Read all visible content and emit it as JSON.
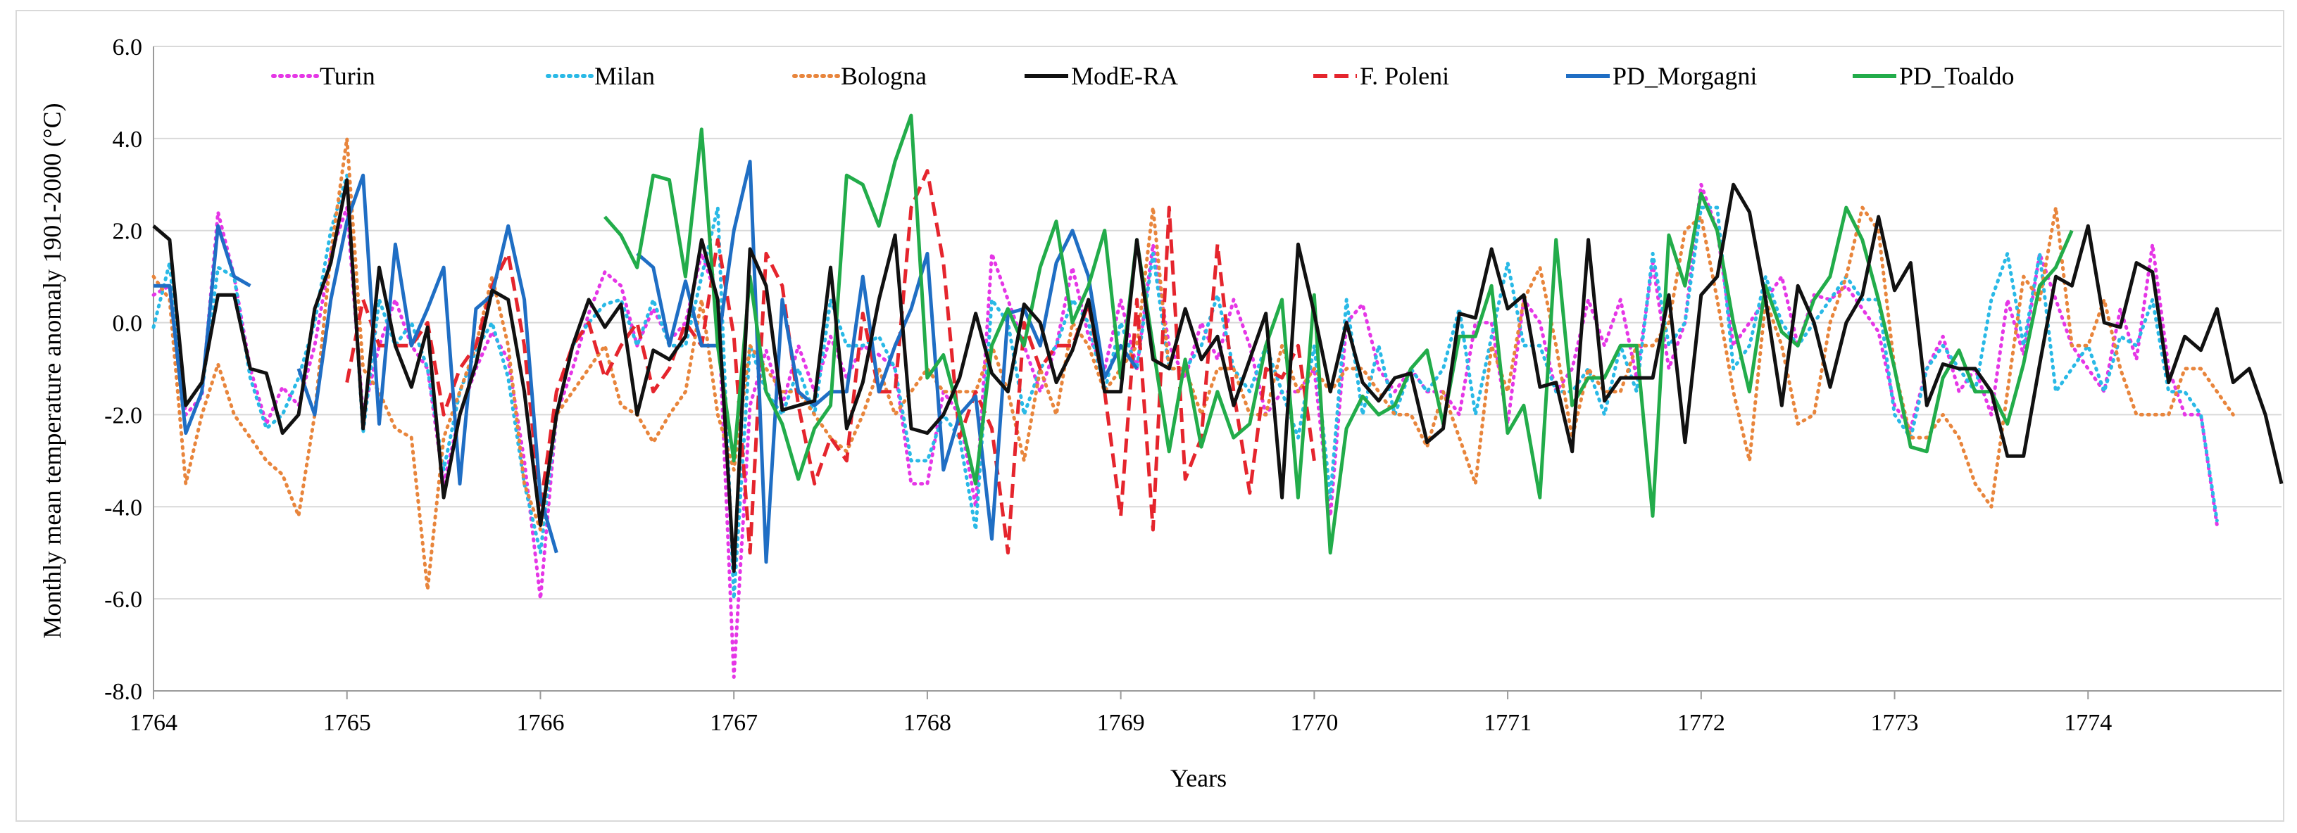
{
  "chart_data": {
    "type": "line",
    "title": "",
    "xlabel": "Years",
    "ylabel": "Monthly mean temperature anomaly 1901-2000 (°C)",
    "ylim": [
      -8.0,
      6.0
    ],
    "xlim": [
      1764,
      1775
    ],
    "yticks": [
      6.0,
      4.0,
      2.0,
      0.0,
      -2.0,
      -4.0,
      -6.0,
      -8.0
    ],
    "ytick_labels": [
      "6.0",
      "4.0",
      "2.0",
      "0.0",
      "-2.0",
      "-4.0",
      "-6.0",
      "-8.0"
    ],
    "xticks": [
      1764,
      1765,
      1766,
      1767,
      1768,
      1769,
      1770,
      1771,
      1772,
      1773,
      1774
    ],
    "xtick_labels": [
      "1764",
      "1765",
      "1766",
      "1767",
      "1768",
      "1769",
      "1770",
      "1771",
      "1772",
      "1773",
      "1774"
    ],
    "legend_position": "top",
    "x_step": 0.0833333,
    "series": [
      {
        "name": "Turin",
        "color": "#e536e6",
        "style": "dotted",
        "start": 1764.0,
        "values": [
          0.6,
          0.8,
          -2.0,
          -1.6,
          2.4,
          1.0,
          -1.0,
          -2.2,
          -1.4,
          -1.8,
          -0.5,
          1.5,
          2.5,
          -2.0,
          -0.5,
          0.5,
          -0.5,
          -1.0,
          -3.5,
          -2.0,
          -1.0,
          -0.2,
          -0.8,
          -3.0,
          -6.0,
          -2.0,
          -1.0,
          0.2,
          1.1,
          0.8,
          -0.5,
          0.3,
          -0.4,
          0.0,
          1.5,
          0.5,
          -7.7,
          -1.8,
          -0.6,
          -1.8,
          -0.5,
          -1.5,
          -0.3,
          -1.2,
          -0.5,
          -0.7,
          -1.0,
          -3.5,
          -3.5,
          -1.5,
          -2.0,
          -4.0,
          1.5,
          0.5,
          -0.5,
          -1.5,
          -0.5,
          1.2,
          -0.3,
          -1.0,
          0.5,
          -1.0,
          1.7,
          -0.5,
          -1.2,
          0.0,
          -0.8,
          0.5,
          -0.5,
          -2.0,
          -1.5,
          -1.5,
          -1.0,
          -4.2,
          0.0,
          0.4,
          -1.0,
          -1.5,
          -1.0,
          -1.5,
          -1.5,
          -2.0,
          0.0,
          0.0,
          -2.2,
          0.5,
          0.0,
          -1.5,
          -1.0,
          0.5,
          -0.5,
          0.5,
          -1.2,
          1.3,
          -1.0,
          0.0,
          3.0,
          2.0,
          -0.5,
          0.0,
          0.5,
          1.0,
          -0.5,
          0.6,
          0.5,
          0.8,
          0.3,
          -0.2,
          -1.8,
          -2.3,
          -1.0,
          -0.3,
          -1.5,
          -1.0,
          -2.0,
          0.5,
          -0.7,
          1.5,
          0.5,
          -0.5,
          -1.0,
          -1.5,
          0.3,
          -0.8,
          1.7,
          -1.0,
          -2.0,
          -2.0,
          -4.4
        ]
      },
      {
        "name": "Milan",
        "color": "#29b9e6",
        "style": "dotted",
        "start": 1764.0,
        "values": [
          -0.1,
          1.3,
          -2.4,
          -1.5,
          1.2,
          1.0,
          -1.2,
          -2.3,
          -2.0,
          -1.2,
          0.0,
          2.0,
          3.2,
          -2.4,
          0.5,
          -0.5,
          0.0,
          -1.0,
          -3.2,
          -1.5,
          -0.6,
          0.0,
          -1.2,
          -3.5,
          -5.0,
          -2.0,
          -0.5,
          0.0,
          0.4,
          0.5,
          -0.5,
          0.5,
          -0.5,
          -0.5,
          1.0,
          2.5,
          -6.0,
          -0.5,
          -1.5,
          -2.0,
          -1.0,
          -2.0,
          0.5,
          -0.5,
          -0.5,
          -0.3,
          -1.0,
          -3.0,
          -3.0,
          -2.0,
          -2.5,
          -4.5,
          0.5,
          0.0,
          -2.0,
          -1.0,
          -0.5,
          0.5,
          0.0,
          -1.5,
          0.0,
          -1.0,
          1.5,
          -1.0,
          -1.0,
          -0.5,
          0.6,
          -1.0,
          -1.5,
          -0.5,
          -1.5,
          -2.5,
          -0.5,
          -3.8,
          0.5,
          -2.0,
          -0.5,
          -2.0,
          -1.0,
          -1.5,
          -1.0,
          0.3,
          -2.0,
          -0.3,
          1.3,
          -0.5,
          -0.5,
          -1.5,
          -1.5,
          -1.0,
          -2.0,
          -0.5,
          -1.5,
          1.5,
          -0.5,
          0.0,
          2.5,
          2.5,
          -1.0,
          -0.5,
          1.0,
          0.0,
          -0.5,
          0.0,
          0.5,
          1.0,
          0.5,
          0.5,
          -2.0,
          -2.5,
          -1.0,
          -0.5,
          -1.0,
          -1.5,
          0.5,
          1.5,
          -0.5,
          1.5,
          -1.5,
          -1.0,
          -0.5,
          -1.5,
          -0.3,
          -0.5,
          0.5,
          -1.5,
          -1.5,
          -2.0,
          -4.3
        ]
      },
      {
        "name": "Bologna",
        "color": "#e8853c",
        "style": "dotted",
        "start": 1764.0,
        "values": [
          1.0,
          0.5,
          -3.5,
          -2.0,
          -0.9,
          -2.0,
          -2.5,
          -3.0,
          -3.3,
          -4.2,
          -2.0,
          1.5,
          4.0,
          -1.0,
          -1.5,
          -2.3,
          -2.5,
          -5.8,
          -2.5,
          -1.5,
          -0.5,
          1.0,
          -0.5,
          -3.5,
          -4.5,
          -2.0,
          -1.5,
          -1.0,
          -0.5,
          -1.8,
          -2.0,
          -2.6,
          -2.0,
          -1.5,
          0.5,
          -2.0,
          -3.2,
          -0.5,
          -1.0,
          -1.5,
          -1.5,
          -2.0,
          -2.5,
          -2.8,
          -2.0,
          -1.0,
          -2.0,
          -1.5,
          -1.0,
          -1.5,
          -1.5,
          -1.5,
          -0.5,
          -1.5,
          -3.0,
          -1.0,
          -2.0,
          0.0,
          -0.5,
          -1.5,
          -1.0,
          -0.5,
          2.5,
          -1.0,
          -1.0,
          -2.0,
          -1.0,
          -1.0,
          -2.0,
          -2.0,
          -0.5,
          -1.5,
          -1.0,
          -1.5,
          -1.0,
          -1.0,
          -1.5,
          -2.0,
          -2.0,
          -2.7,
          -1.5,
          -2.5,
          -3.5,
          -0.5,
          -1.5,
          0.5,
          1.2,
          -0.5,
          -2.5,
          -1.0,
          -1.5,
          -1.5,
          -0.5,
          -0.5,
          0.0,
          2.0,
          2.3,
          0.5,
          -1.5,
          -3.0,
          0.5,
          -0.5,
          -2.2,
          -2.0,
          0.0,
          1.0,
          2.5,
          2.0,
          -1.0,
          -2.5,
          -2.5,
          -2.0,
          -2.5,
          -3.5,
          -4.0,
          -1.5,
          1.0,
          0.5,
          2.5,
          -0.5,
          -0.5,
          0.5,
          -1.0,
          -2.0,
          -2.0,
          -2.0,
          -1.0,
          -1.0,
          -1.5,
          -2.0
        ]
      },
      {
        "name": "ModE-RA",
        "color": "#111111",
        "style": "solid",
        "start": 1764.0,
        "values": [
          2.1,
          1.8,
          -1.8,
          -1.3,
          0.6,
          0.6,
          -1.0,
          -1.1,
          -2.4,
          -2.0,
          0.3,
          1.3,
          3.1,
          -2.3,
          1.2,
          -0.5,
          -1.4,
          -0.1,
          -3.8,
          -2.0,
          -0.9,
          0.7,
          0.5,
          -1.5,
          -4.4,
          -2.0,
          -0.5,
          0.5,
          -0.1,
          0.4,
          -2.0,
          -0.6,
          -0.8,
          -0.3,
          1.8,
          0.5,
          -5.4,
          1.6,
          0.8,
          -1.9,
          -1.8,
          -1.7,
          1.2,
          -2.3,
          -1.3,
          0.5,
          1.9,
          -2.3,
          -2.4,
          -2.0,
          -1.2,
          0.2,
          -1.1,
          -1.5,
          0.4,
          0.0,
          -1.3,
          -0.6,
          0.5,
          -1.5,
          -1.5,
          1.8,
          -0.8,
          -1.0,
          0.3,
          -0.8,
          -0.3,
          -1.8,
          -0.8,
          0.2,
          -3.8,
          1.7,
          0.2,
          -1.5,
          0.0,
          -1.3,
          -1.7,
          -1.2,
          -1.1,
          -2.6,
          -2.3,
          0.2,
          0.1,
          1.6,
          0.3,
          0.6,
          -1.4,
          -1.3,
          -2.8,
          1.8,
          -1.7,
          -1.2,
          -1.2,
          -1.2,
          0.6,
          -2.6,
          0.6,
          1.0,
          3.0,
          2.4,
          0.5,
          -1.8,
          0.8,
          0.0,
          -1.4,
          0.0,
          0.6,
          2.3,
          0.7,
          1.3,
          -1.8,
          -0.9,
          -1.0,
          -1.0,
          -1.5,
          -2.9,
          -2.9,
          -0.9,
          1.0,
          0.8,
          2.1,
          0.0,
          -0.1,
          1.3,
          1.1,
          -1.3,
          -0.3,
          -0.6,
          0.3,
          -1.3,
          -1.0,
          -2.0,
          -3.5
        ]
      },
      {
        "name": "F. Poleni",
        "color": "#e5252d",
        "style": "dashed",
        "start": 1765.0,
        "values": [
          -1.3,
          0.5,
          -0.5,
          -0.5,
          -0.5,
          0.0,
          -2.0,
          -1.0,
          -0.5,
          0.8,
          1.5,
          -0.5,
          -4.0,
          -1.5,
          -0.5,
          0.0,
          -1.2,
          -0.5,
          0.0,
          -1.5,
          -1.0,
          0.0,
          -0.5,
          1.8,
          -0.3,
          -5.0,
          1.5,
          0.8,
          -1.8,
          -3.5,
          -2.5,
          -3.0,
          0.2,
          -1.5,
          -1.5,
          2.5,
          3.3,
          1.3,
          -2.5,
          -1.5,
          -2.3,
          -5.0,
          0.0,
          -1.0,
          -0.5,
          -0.5,
          0.4,
          -1.5,
          -4.2,
          0.5,
          -4.5,
          2.5,
          -3.4,
          -2.5,
          1.7,
          -1.5,
          -3.7,
          -1.0,
          -1.2,
          -0.5,
          -3.0
        ]
      },
      {
        "name": "PD_Morgagni",
        "color": "#1f6ec4",
        "style": "solid",
        "start": 1764.0,
        "values": [
          0.8,
          0.8,
          -2.4,
          -1.5,
          2.1,
          1.0,
          0.8,
          null,
          null,
          -1.0,
          -2.0,
          0.5,
          2.2,
          3.2,
          -2.2,
          1.7,
          -0.5,
          0.3,
          1.2,
          -3.5,
          0.3,
          0.6,
          2.1,
          0.5,
          -3.8,
          -5.0,
          null,
          null,
          null,
          null,
          1.5,
          1.2,
          -0.5,
          0.9,
          -0.5,
          -0.5,
          2.0,
          3.5,
          -5.2,
          0.5,
          -1.5,
          -1.8,
          -1.5,
          -1.5,
          1.0,
          -1.5,
          -0.5,
          0.3,
          1.5,
          -3.2,
          -2.0,
          -1.6,
          -4.7,
          0.2,
          0.3,
          -0.5,
          1.3,
          2.0,
          1.0,
          -1.2,
          -0.5,
          -1.0
        ]
      },
      {
        "name": "PD_Toaldo",
        "color": "#22ac4a",
        "style": "solid",
        "start": 1766.333,
        "values": [
          2.3,
          1.9,
          1.2,
          3.2,
          3.1,
          1.0,
          4.2,
          -0.5,
          -3.0,
          1.0,
          -1.5,
          -2.2,
          -3.4,
          -2.3,
          -1.8,
          3.2,
          3.0,
          2.1,
          3.5,
          4.5,
          -1.2,
          -0.7,
          -2.0,
          -3.5,
          -0.5,
          0.3,
          -0.5,
          1.2,
          2.2,
          0.0,
          0.8,
          2.0,
          -1.2,
          1.8,
          -0.5,
          -2.8,
          -0.8,
          -2.7,
          -1.5,
          -2.5,
          -2.2,
          -0.5,
          0.5,
          -3.8,
          0.6,
          -5.0,
          -2.3,
          -1.6,
          -2.0,
          -1.8,
          -1.0,
          -0.6,
          -2.2,
          -0.3,
          -0.3,
          0.8,
          -2.4,
          -1.8,
          -3.8,
          1.8,
          -1.8,
          -1.2,
          -1.2,
          -0.5,
          -0.5,
          -4.2,
          1.9,
          0.8,
          2.8,
          2.0,
          0.0,
          -1.5,
          0.8,
          -0.2,
          -0.5,
          0.5,
          1.0,
          2.5,
          1.8,
          0.5,
          -1.0,
          -2.7,
          -2.8,
          -1.2,
          -0.6,
          -1.5,
          -1.5,
          -2.2,
          -0.9,
          0.8,
          1.2,
          2.0
        ]
      }
    ]
  }
}
